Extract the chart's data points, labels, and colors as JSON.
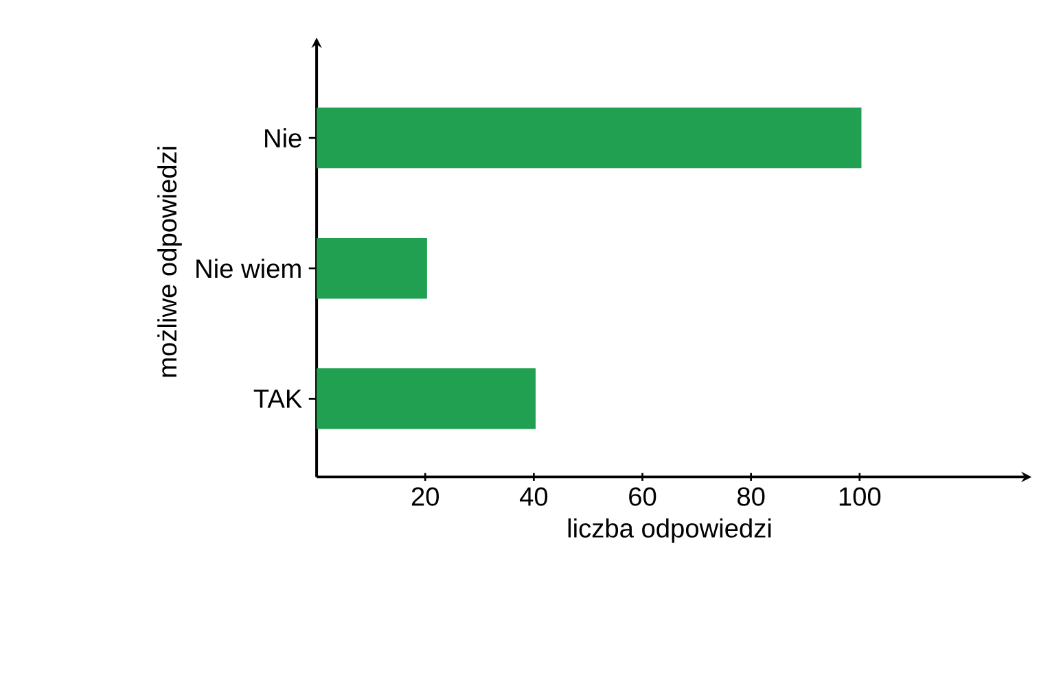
{
  "chart_data": {
    "type": "bar",
    "orientation": "horizontal",
    "xlabel": "liczba odpowiedzi",
    "ylabel": "możliwe odpowiedzi",
    "categories": [
      "Nie",
      "Nie wiem",
      "TAK"
    ],
    "values": [
      100,
      20,
      40
    ],
    "color": "#22a052",
    "xlim": [
      0,
      130
    ],
    "xticks": [
      20,
      40,
      60,
      80,
      100
    ],
    "grid": false,
    "legend": false
  }
}
